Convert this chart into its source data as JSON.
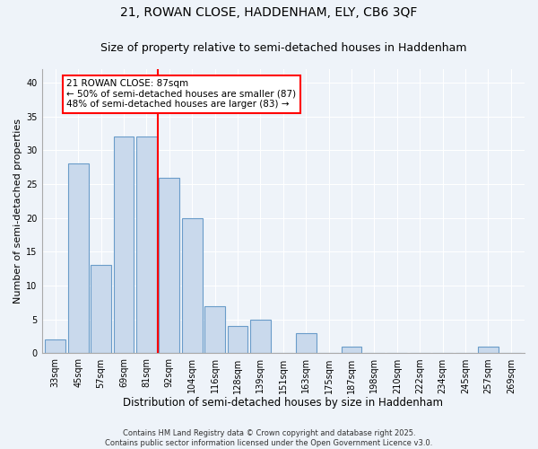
{
  "title1": "21, ROWAN CLOSE, HADDENHAM, ELY, CB6 3QF",
  "title2": "Size of property relative to semi-detached houses in Haddenham",
  "xlabel": "Distribution of semi-detached houses by size in Haddenham",
  "ylabel": "Number of semi-detached properties",
  "categories": [
    "33sqm",
    "45sqm",
    "57sqm",
    "69sqm",
    "81sqm",
    "92sqm",
    "104sqm",
    "116sqm",
    "128sqm",
    "139sqm",
    "151sqm",
    "163sqm",
    "175sqm",
    "187sqm",
    "198sqm",
    "210sqm",
    "222sqm",
    "234sqm",
    "245sqm",
    "257sqm",
    "269sqm"
  ],
  "values": [
    2,
    28,
    13,
    32,
    32,
    26,
    20,
    7,
    4,
    5,
    0,
    3,
    0,
    1,
    0,
    0,
    0,
    0,
    0,
    1,
    0
  ],
  "bar_color": "#c9d9ec",
  "bar_edge_color": "#6a9cc9",
  "annotation_text": "21 ROWAN CLOSE: 87sqm\n← 50% of semi-detached houses are smaller (87)\n48% of semi-detached houses are larger (83) →",
  "annotation_box_color": "white",
  "annotation_box_edge": "red",
  "ylim": [
    0,
    42
  ],
  "yticks": [
    0,
    5,
    10,
    15,
    20,
    25,
    30,
    35,
    40
  ],
  "background_color": "#eef3f9",
  "footer": "Contains HM Land Registry data © Crown copyright and database right 2025.\nContains public sector information licensed under the Open Government Licence v3.0.",
  "title1_fontsize": 10,
  "title2_fontsize": 9,
  "xlabel_fontsize": 8.5,
  "ylabel_fontsize": 8,
  "tick_fontsize": 7,
  "annotation_fontsize": 7.5,
  "footer_fontsize": 6
}
